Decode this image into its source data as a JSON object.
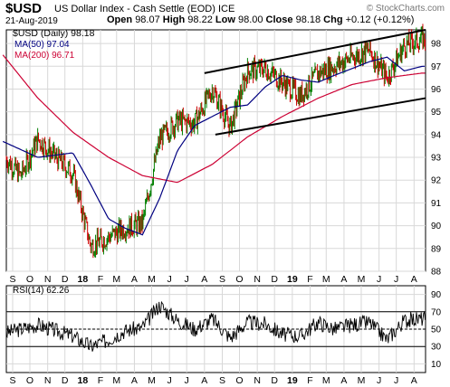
{
  "header": {
    "symbol": "$USD",
    "description": "US Dollar Index - Cash Settle (EOD)  ICE",
    "watermark": "© StockCharts.com",
    "date": "21-Aug-2019",
    "open_label": "Open",
    "open": "98.07",
    "high_label": "High",
    "high": "98.22",
    "low_label": "Low",
    "low": "98.00",
    "close_label": "Close",
    "close": "98.18",
    "chg_label": "Chg",
    "chg": "+0.12 (+0.12%)"
  },
  "legend": {
    "main": "$USD (Daily) 98.18",
    "ma50": "MA(50) 97.04",
    "ma200": "MA(200) 96.71",
    "rsi": "RSI(14) 62.26"
  },
  "colors": {
    "price_up": "#008000",
    "price_down": "#cc0000",
    "ma50": "#000080",
    "ma200": "#cc0033",
    "channel": "#000000",
    "rsi": "#000000"
  },
  "chart_data": [
    {
      "type": "line",
      "title": "$USD (Daily) 98.18",
      "x_tick_labels": [
        "S",
        "O",
        "N",
        "D",
        "18",
        "F",
        "M",
        "A",
        "M",
        "J",
        "J",
        "A",
        "S",
        "O",
        "N",
        "D",
        "19",
        "F",
        "M",
        "A",
        "M",
        "J",
        "J",
        "A"
      ],
      "x_range": [
        "2017-08-21",
        "2019-08-21"
      ],
      "ylim": [
        88,
        98.6
      ],
      "y_ticks": [
        88,
        89,
        90,
        91,
        92,
        93,
        94,
        95,
        96,
        97,
        98
      ],
      "grid": true,
      "series": [
        {
          "name": "$USD (Daily)",
          "x": [
            "2017-08",
            "2017-09",
            "2017-10",
            "2017-11",
            "2017-12",
            "2018-01",
            "2018-02",
            "2018-03",
            "2018-04",
            "2018-05",
            "2018-06",
            "2018-07",
            "2018-08",
            "2018-09",
            "2018-10",
            "2018-11",
            "2018-12",
            "2019-01",
            "2019-02",
            "2019-03",
            "2019-04",
            "2019-05",
            "2019-06",
            "2019-07",
            "2019-08"
          ],
          "values": [
            93.1,
            92.2,
            93.8,
            93.0,
            92.3,
            89.1,
            89.5,
            89.9,
            90.1,
            93.8,
            94.6,
            94.5,
            96.0,
            94.3,
            96.8,
            96.9,
            96.3,
            95.7,
            96.7,
            97.0,
            97.4,
            97.7,
            96.5,
            97.9,
            98.2
          ]
        },
        {
          "name": "MA(50)",
          "x": [
            "2017-08",
            "2017-10",
            "2017-12",
            "2018-01",
            "2018-02",
            "2018-03",
            "2018-04",
            "2018-05",
            "2018-06",
            "2018-07",
            "2018-08",
            "2018-09",
            "2018-10",
            "2018-11",
            "2018-12",
            "2019-01",
            "2019-02",
            "2019-03",
            "2019-04",
            "2019-05",
            "2019-06",
            "2019-07",
            "2019-08"
          ],
          "values": [
            93.7,
            93.0,
            93.2,
            91.8,
            90.3,
            89.9,
            89.6,
            91.2,
            93.3,
            94.4,
            94.8,
            95.2,
            95.3,
            96.1,
            96.6,
            96.4,
            96.3,
            96.6,
            96.9,
            97.2,
            97.4,
            96.8,
            97.0
          ]
        },
        {
          "name": "MA(200)",
          "x": [
            "2017-08",
            "2017-10",
            "2017-12",
            "2018-02",
            "2018-04",
            "2018-06",
            "2018-08",
            "2018-10",
            "2018-12",
            "2019-02",
            "2019-04",
            "2019-06",
            "2019-08"
          ],
          "values": [
            97.5,
            95.6,
            94.1,
            93.0,
            92.2,
            91.9,
            92.7,
            93.9,
            94.8,
            95.6,
            96.2,
            96.5,
            96.7
          ]
        }
      ],
      "annotations": [
        {
          "label": "channel upper",
          "from": [
            "2018-08-01",
            96.7
          ],
          "to": [
            "2019-08-21",
            98.6
          ]
        },
        {
          "label": "channel lower",
          "from": [
            "2018-08-20",
            94.0
          ],
          "to": [
            "2019-08-21",
            95.6
          ]
        }
      ]
    },
    {
      "type": "line",
      "title": "RSI(14) 62.26",
      "x_tick_labels": [
        "S",
        "O",
        "N",
        "D",
        "18",
        "F",
        "M",
        "A",
        "M",
        "J",
        "J",
        "A",
        "S",
        "O",
        "N",
        "D",
        "19",
        "F",
        "M",
        "A",
        "M",
        "J",
        "J",
        "A"
      ],
      "x_range": [
        "2017-08-21",
        "2019-08-21"
      ],
      "ylim": [
        0,
        100
      ],
      "y_ticks": [
        10,
        30,
        50,
        70,
        90
      ],
      "reference_lines": [
        30,
        50,
        70
      ],
      "series": [
        {
          "name": "RSI(14)",
          "x": [
            "2017-08",
            "2017-10",
            "2017-12",
            "2018-01",
            "2018-02",
            "2018-03",
            "2018-04",
            "2018-05",
            "2018-06",
            "2018-07",
            "2018-08",
            "2018-09",
            "2018-10",
            "2018-11",
            "2018-12",
            "2019-01",
            "2019-02",
            "2019-03",
            "2019-04",
            "2019-05",
            "2019-06",
            "2019-07",
            "2019-08"
          ],
          "values": [
            45,
            55,
            42,
            30,
            38,
            48,
            52,
            78,
            60,
            50,
            62,
            40,
            58,
            56,
            44,
            42,
            58,
            50,
            55,
            58,
            38,
            60,
            62.26
          ]
        }
      ]
    }
  ]
}
